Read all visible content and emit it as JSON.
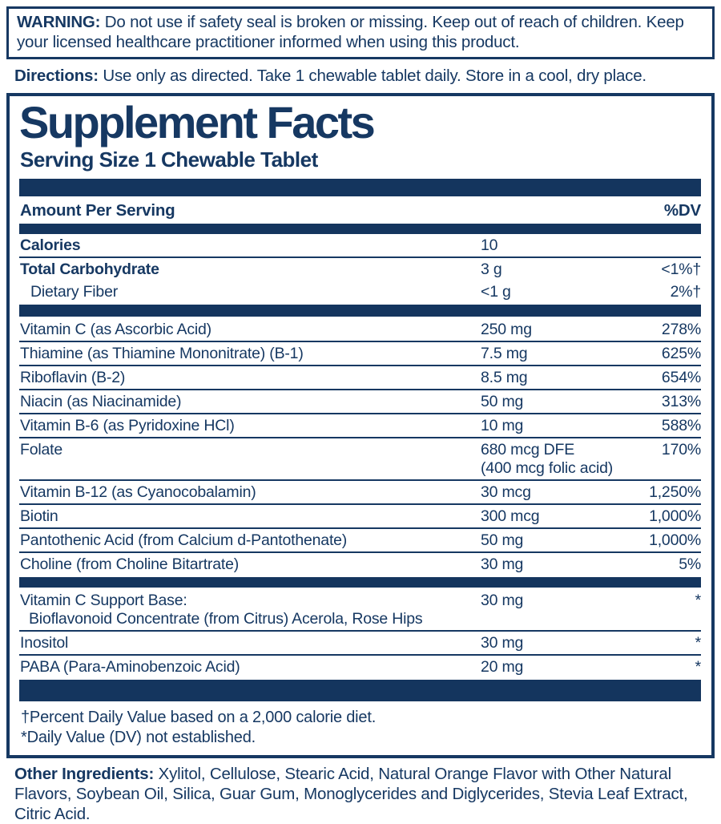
{
  "colors": {
    "navy": "#163862",
    "bar": "#14355e",
    "background": "#ffffff"
  },
  "warning": {
    "label": "WARNING:",
    "text": " Do not use if safety seal is broken or missing. Keep out of reach of children. Keep your licensed healthcare practitioner informed when using this product."
  },
  "directions": {
    "label": "Directions:",
    "text": " Use only as directed. Take 1 chewable tablet daily. Store in a cool, dry place."
  },
  "panel": {
    "title": "Supplement Facts",
    "serving_size": "Serving Size 1 Chewable Tablet",
    "header": {
      "amount": "Amount Per Serving",
      "dv": "%DV"
    },
    "rows": [
      {
        "type": "row",
        "name": "Calories",
        "bold": true,
        "amount": "10",
        "dv": "",
        "sep": "line"
      },
      {
        "type": "row",
        "name": "Total Carbohydrate",
        "bold": true,
        "amount": "3 g",
        "dv": "<1%†",
        "sep": "none"
      },
      {
        "type": "row",
        "name": "Dietary Fiber",
        "indent": true,
        "amount": "<1 g",
        "dv": "2%†",
        "sep": "none"
      },
      {
        "type": "bar",
        "size": "bar-md"
      },
      {
        "type": "row",
        "name": "Vitamin C (as Ascorbic Acid)",
        "amount": "250 mg",
        "dv": "278%",
        "sep": "line"
      },
      {
        "type": "row",
        "name": "Thiamine (as Thiamine Mononitrate) (B-1)",
        "amount": "7.5 mg",
        "dv": "625%",
        "sep": "line"
      },
      {
        "type": "row",
        "name": "Riboflavin (B-2)",
        "amount": "8.5 mg",
        "dv": "654%",
        "sep": "line"
      },
      {
        "type": "row",
        "name": "Niacin (as Niacinamide)",
        "amount": "50 mg",
        "dv": "313%",
        "sep": "line"
      },
      {
        "type": "row",
        "name": "Vitamin B-6 (as Pyridoxine HCl)",
        "amount": "10 mg",
        "dv": "588%",
        "sep": "line"
      },
      {
        "type": "row",
        "name": "Folate",
        "amount": "680 mcg DFE",
        "amount2": "(400 mcg folic acid)",
        "dv": "170%",
        "sep": "line"
      },
      {
        "type": "row",
        "name": "Vitamin B-12 (as Cyanocobalamin)",
        "amount": "30 mcg",
        "dv": "1,250%",
        "sep": "line"
      },
      {
        "type": "row",
        "name": "Biotin",
        "amount": "300 mcg",
        "dv": "1,000%",
        "sep": "line"
      },
      {
        "type": "row",
        "name": "Pantothenic Acid (from Calcium d-Pantothenate)",
        "amount": "50 mg",
        "dv": "1,000%",
        "sep": "line"
      },
      {
        "type": "row",
        "name": "Choline (from Choline Bitartrate)",
        "amount": "30 mg",
        "dv": "5%",
        "sep": "none"
      },
      {
        "type": "bar",
        "size": "bar-sm"
      },
      {
        "type": "row",
        "name": "Vitamin C Support Base:",
        "name2": "Bioflavonoid Concentrate (from Citrus) Acerola, Rose Hips",
        "amount": "30 mg",
        "dv": "*",
        "sep": "line"
      },
      {
        "type": "row",
        "name": "Inositol",
        "amount": "30 mg",
        "dv": "*",
        "sep": "line"
      },
      {
        "type": "row",
        "name": "PABA (Para-Aminobenzoic Acid)",
        "amount": "20 mg",
        "dv": "*",
        "sep": "none"
      },
      {
        "type": "bar",
        "size": "bar-lg"
      }
    ],
    "footnote1": "†Percent Daily Value based on a 2,000 calorie diet.",
    "footnote2": "*Daily Value (DV) not established."
  },
  "other_ingredients": {
    "label": "Other Ingredients:",
    "text": " Xylitol, Cellulose, Stearic Acid, Natural Orange Flavor with Other Natural Flavors, Soybean Oil, Silica, Guar Gum, Monoglycerides and Diglycerides, Stevia Leaf Extract, Citric Acid."
  }
}
